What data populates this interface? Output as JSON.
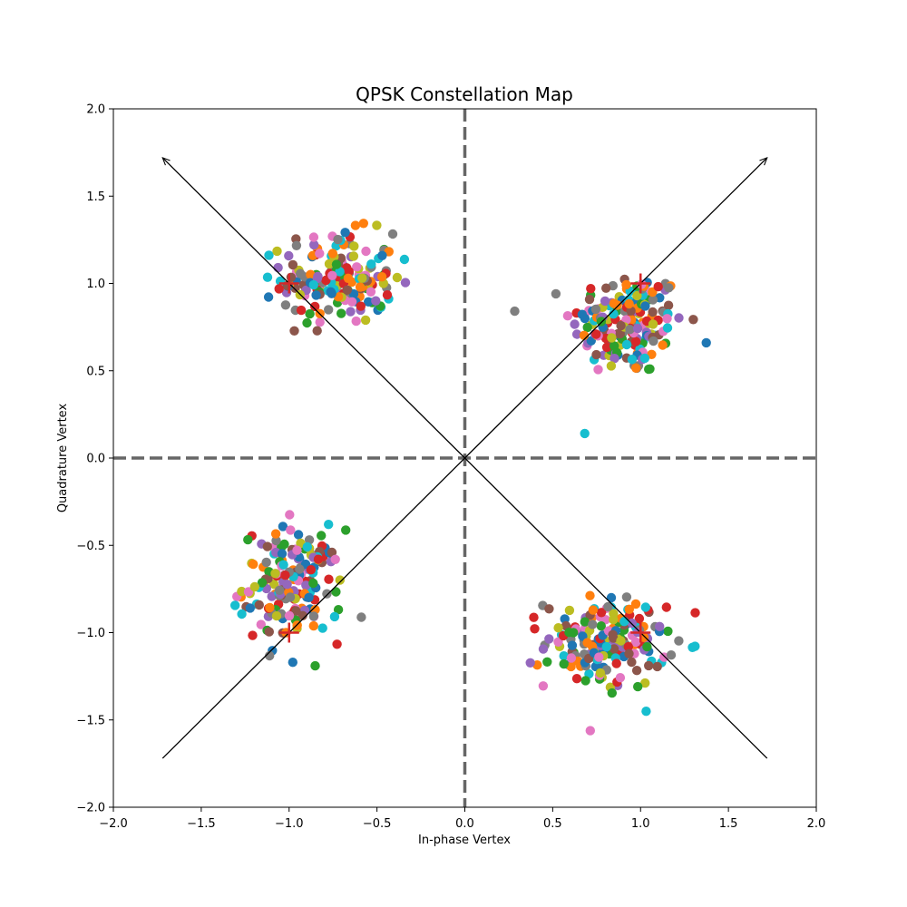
{
  "chart_data": {
    "type": "scatter",
    "title": "QPSK Constellation Map",
    "xlabel": "In-phase Vertex",
    "ylabel": "Quadrature Vertex",
    "xlim": [
      -2,
      2
    ],
    "ylim": [
      -2,
      2
    ],
    "xticks": [
      "−2.0",
      "−1.5",
      "−1.0",
      "−0.5",
      "0.0",
      "0.5",
      "1.0",
      "1.5",
      "2.0"
    ],
    "yticks": [
      "−2.0",
      "−1.5",
      "−1.0",
      "−0.5",
      "0.0",
      "0.5",
      "1.0",
      "1.5",
      "2.0"
    ],
    "xtick_values": [
      -2,
      -1.5,
      -1,
      -0.5,
      0,
      0.5,
      1,
      1.5,
      2
    ],
    "ytick_values": [
      -2,
      -1.5,
      -1,
      -0.5,
      0,
      0.5,
      1,
      1.5,
      2
    ],
    "grid": false,
    "palette": [
      "#1f77b4",
      "#ff7f0e",
      "#2ca02c",
      "#d62728",
      "#9467bd",
      "#8c564b",
      "#e377c2",
      "#7f7f7f",
      "#bcbd22",
      "#17becf"
    ],
    "reference_points": [
      [
        1,
        1
      ],
      [
        -1,
        1
      ],
      [
        -1,
        -1
      ],
      [
        1,
        -1
      ]
    ],
    "reference_marker_color": "#d62728",
    "dashed_axes_color": "#666666",
    "arrows": [
      {
        "from": [
          0,
          0
        ],
        "to": [
          1.72,
          1.72
        ]
      },
      {
        "from": [
          0,
          0
        ],
        "to": [
          -1.72,
          1.72
        ]
      },
      {
        "from": [
          0,
          0
        ],
        "to": [
          -1.72,
          -1.72
        ]
      },
      {
        "from": [
          0,
          0
        ],
        "to": [
          1.72,
          -1.72
        ]
      }
    ],
    "clusters": [
      {
        "center": [
          0.93,
          0.77
        ],
        "spread": [
          0.16,
          0.15
        ],
        "count": 180
      },
      {
        "center": [
          -0.72,
          1.03
        ],
        "spread": [
          0.16,
          0.13
        ],
        "count": 180
      },
      {
        "center": [
          -0.98,
          -0.73
        ],
        "spread": [
          0.14,
          0.16
        ],
        "count": 180
      },
      {
        "center": [
          0.8,
          -1.06
        ],
        "spread": [
          0.17,
          0.13
        ],
        "count": 180
      }
    ]
  }
}
